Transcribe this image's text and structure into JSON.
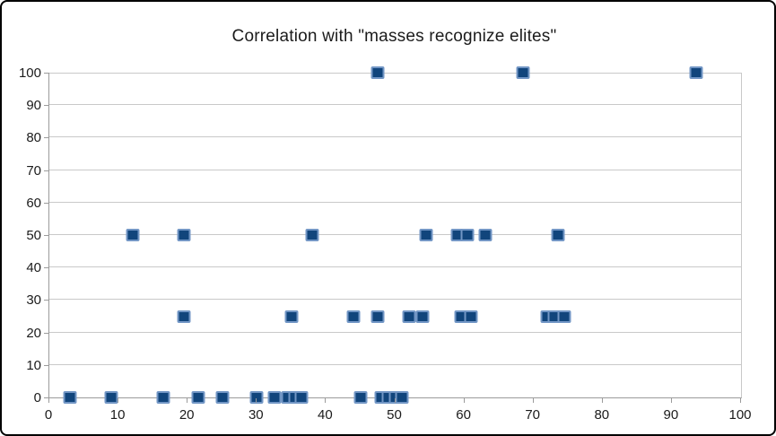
{
  "chart_data": {
    "type": "scatter",
    "title": "Correlation with \"masses recognize elites\"",
    "xlabel": "",
    "ylabel": "",
    "xlim": [
      0,
      100
    ],
    "ylim": [
      0,
      100
    ],
    "x_ticks": [
      0,
      10,
      20,
      30,
      40,
      50,
      60,
      70,
      80,
      90,
      100
    ],
    "y_ticks": [
      0,
      10,
      20,
      30,
      40,
      50,
      60,
      70,
      80,
      90,
      100
    ],
    "grid": "horizontal",
    "legend": "none",
    "marker": {
      "shape": "square",
      "fill": "#11457c",
      "border": "#7296c5"
    },
    "points": [
      {
        "x": 3,
        "y": 0
      },
      {
        "x": 9,
        "y": 0
      },
      {
        "x": 16.5,
        "y": 0
      },
      {
        "x": 21.5,
        "y": 0
      },
      {
        "x": 25,
        "y": 0
      },
      {
        "x": 30,
        "y": 0
      },
      {
        "x": 32.5,
        "y": 0
      },
      {
        "x": 34.5,
        "y": 0
      },
      {
        "x": 35.5,
        "y": 0
      },
      {
        "x": 36.5,
        "y": 0
      },
      {
        "x": 45,
        "y": 0
      },
      {
        "x": 48,
        "y": 0
      },
      {
        "x": 49,
        "y": 0
      },
      {
        "x": 50,
        "y": 0
      },
      {
        "x": 51,
        "y": 0
      },
      {
        "x": 19.5,
        "y": 25
      },
      {
        "x": 35,
        "y": 25
      },
      {
        "x": 44,
        "y": 25
      },
      {
        "x": 47.5,
        "y": 25
      },
      {
        "x": 52,
        "y": 25
      },
      {
        "x": 54,
        "y": 25
      },
      {
        "x": 59.5,
        "y": 25
      },
      {
        "x": 61,
        "y": 25
      },
      {
        "x": 72,
        "y": 25
      },
      {
        "x": 73,
        "y": 25
      },
      {
        "x": 74.5,
        "y": 25
      },
      {
        "x": 12,
        "y": 50
      },
      {
        "x": 19.5,
        "y": 50
      },
      {
        "x": 38,
        "y": 50
      },
      {
        "x": 54.5,
        "y": 50
      },
      {
        "x": 59,
        "y": 50
      },
      {
        "x": 60.5,
        "y": 50
      },
      {
        "x": 63,
        "y": 50
      },
      {
        "x": 73.5,
        "y": 50
      },
      {
        "x": 47.5,
        "y": 100
      },
      {
        "x": 68.5,
        "y": 100
      },
      {
        "x": 93.5,
        "y": 100
      }
    ]
  },
  "colors": {
    "background": "#ffffff",
    "outer_border": "#000000",
    "gridline": "#c9c9c9",
    "axis_line": "#9b9b9b",
    "text": "#1b1b1b",
    "marker_fill": "#11457c",
    "marker_border": "#7296c5"
  }
}
